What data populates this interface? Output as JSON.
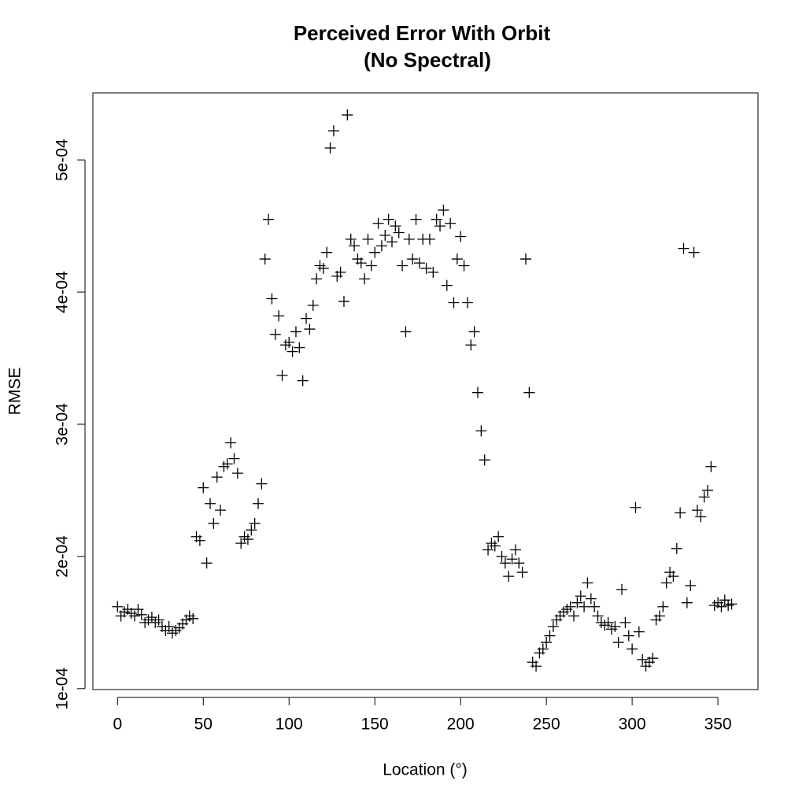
{
  "chart_data": {
    "type": "scatter",
    "title": "Perceived Error With Orbit",
    "subtitle": "(No Spectral)",
    "x_label": "Location (°)",
    "y_label": "RMSE",
    "marker": "plus",
    "color": "#000000",
    "xlim": [
      -14.36,
      373.36
    ],
    "ylim": [
      9.93e-05,
      0.0005507
    ],
    "xticks": [
      0,
      50,
      100,
      150,
      200,
      250,
      300,
      350
    ],
    "yticks": [
      {
        "value": 0.0001,
        "label": "1e-04"
      },
      {
        "value": 0.0002,
        "label": "2e-04"
      },
      {
        "value": 0.0003,
        "label": "3e-04"
      },
      {
        "value": 0.0004,
        "label": "4e-04"
      },
      {
        "value": 0.0005,
        "label": "5e-04"
      }
    ],
    "series": [
      {
        "name": "RMSE",
        "x": [
          0,
          2,
          4,
          6,
          8,
          10,
          12,
          14,
          16,
          18,
          20,
          22,
          24,
          26,
          28,
          30,
          32,
          34,
          36,
          38,
          40,
          42,
          44,
          46,
          48,
          50,
          52,
          54,
          56,
          58,
          60,
          62,
          64,
          66,
          68,
          70,
          72,
          74,
          76,
          78,
          80,
          82,
          84,
          86,
          88,
          90,
          92,
          94,
          96,
          98,
          100,
          102,
          104,
          106,
          108,
          110,
          112,
          114,
          116,
          118,
          120,
          122,
          124,
          126,
          128,
          130,
          132,
          134,
          136,
          138,
          140,
          142,
          144,
          146,
          148,
          150,
          152,
          154,
          156,
          158,
          160,
          162,
          164,
          166,
          168,
          170,
          172,
          174,
          176,
          178,
          180,
          182,
          184,
          186,
          188,
          190,
          192,
          194,
          196,
          198,
          200,
          202,
          204,
          206,
          208,
          210,
          212,
          214,
          216,
          218,
          220,
          222,
          224,
          226,
          228,
          230,
          232,
          234,
          236,
          238,
          240,
          242,
          244,
          246,
          248,
          250,
          252,
          254,
          256,
          258,
          260,
          262,
          264,
          266,
          268,
          270,
          272,
          274,
          276,
          278,
          280,
          282,
          284,
          286,
          288,
          290,
          292,
          294,
          296,
          298,
          300,
          302,
          304,
          306,
          308,
          310,
          312,
          314,
          316,
          318,
          320,
          322,
          324,
          326,
          328,
          330,
          332,
          334,
          336,
          338,
          340,
          342,
          344,
          346,
          348,
          350,
          352,
          354,
          356,
          358
        ],
        "values": [
          0.000162,
          0.000155,
          0.000158,
          0.00016,
          0.000157,
          0.000155,
          0.00016,
          0.000156,
          0.00015,
          0.000152,
          0.000154,
          0.00015,
          0.000152,
          0.000147,
          0.000144,
          0.000147,
          0.000142,
          0.000144,
          0.000146,
          0.000149,
          0.000152,
          0.000155,
          0.000153,
          0.000215,
          0.000212,
          0.000252,
          0.000195,
          0.00024,
          0.000225,
          0.00026,
          0.000235,
          0.000268,
          0.00027,
          0.000286,
          0.000274,
          0.000263,
          0.00021,
          0.000215,
          0.000213,
          0.00022,
          0.000225,
          0.00024,
          0.000255,
          0.000425,
          0.000455,
          0.000395,
          0.000368,
          0.000382,
          0.000337,
          0.00036,
          0.000362,
          0.000355,
          0.00037,
          0.000358,
          0.000333,
          0.00038,
          0.000372,
          0.00039,
          0.00041,
          0.00042,
          0.000418,
          0.00043,
          0.000509,
          0.000522,
          0.000412,
          0.000415,
          0.000393,
          0.000534,
          0.00044,
          0.000435,
          0.000425,
          0.000422,
          0.00041,
          0.00044,
          0.00042,
          0.00043,
          0.000452,
          0.000435,
          0.000443,
          0.000455,
          0.000438,
          0.00045,
          0.000445,
          0.00042,
          0.00037,
          0.00044,
          0.000425,
          0.000455,
          0.000422,
          0.00044,
          0.000418,
          0.00044,
          0.000415,
          0.000455,
          0.00045,
          0.000462,
          0.000405,
          0.000452,
          0.000392,
          0.000425,
          0.000442,
          0.00042,
          0.000392,
          0.00036,
          0.00037,
          0.000324,
          0.000295,
          0.000273,
          0.000205,
          0.00021,
          0.000208,
          0.000215,
          0.0002,
          0.000195,
          0.000185,
          0.000198,
          0.000205,
          0.000195,
          0.000188,
          0.000425,
          0.000324,
          0.00012,
          0.000117,
          0.000127,
          0.00013,
          0.000135,
          0.00014,
          0.000147,
          0.000152,
          0.000155,
          0.000158,
          0.00016,
          0.000162,
          0.000155,
          0.000165,
          0.00017,
          0.000162,
          0.00018,
          0.000168,
          0.000162,
          0.000155,
          0.00015,
          0.000148,
          0.00015,
          0.000145,
          0.000147,
          0.000135,
          0.000175,
          0.00015,
          0.00014,
          0.00013,
          0.000237,
          0.000143,
          0.000122,
          0.000117,
          0.00012,
          0.000123,
          0.000152,
          0.000155,
          0.000162,
          0.00018,
          0.000188,
          0.000185,
          0.000206,
          0.000233,
          0.000433,
          0.000165,
          0.000178,
          0.00043,
          0.000235,
          0.00023,
          0.000245,
          0.00025,
          0.000268,
          0.000163,
          0.000165,
          0.000162,
          0.000167,
          0.000163,
          0.000164
        ]
      }
    ]
  }
}
